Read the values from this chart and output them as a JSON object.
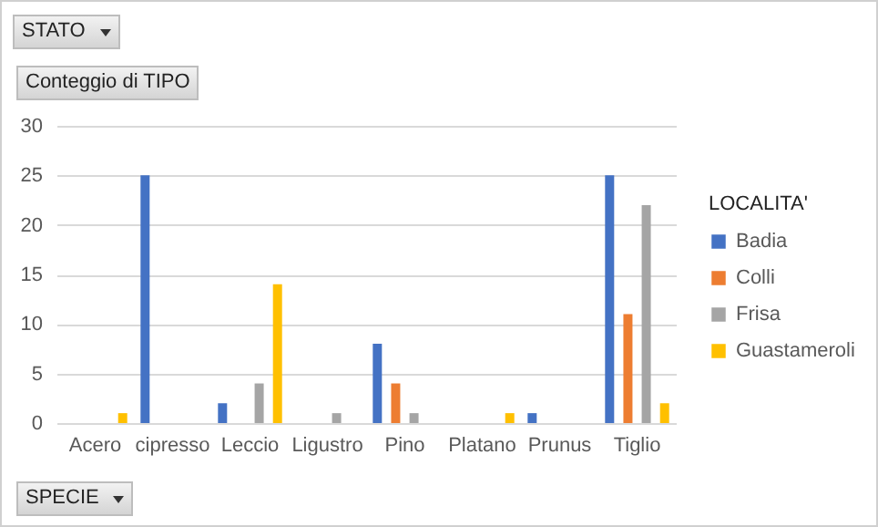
{
  "chart_data": {
    "type": "bar",
    "title": "STATO",
    "ylabel": "Conteggio di TIPO",
    "xlabel": "SPECIE",
    "legend_title": "LOCALITA'",
    "categories": [
      "Acero",
      "cipresso",
      "Leccio",
      "Ligustro",
      "Pino",
      "Platano",
      "Prunus",
      "Tiglio"
    ],
    "series": [
      {
        "name": "Badia",
        "color": "#4472c4",
        "values": [
          null,
          25,
          2,
          null,
          8,
          null,
          1,
          25
        ]
      },
      {
        "name": "Colli",
        "color": "#ed7d31",
        "values": [
          null,
          null,
          null,
          null,
          4,
          null,
          null,
          11
        ]
      },
      {
        "name": "Frisa",
        "color": "#a5a5a5",
        "values": [
          null,
          null,
          4,
          1,
          1,
          null,
          null,
          22
        ]
      },
      {
        "name": "Guastameroli",
        "color": "#ffc000",
        "values": [
          1,
          null,
          14,
          null,
          null,
          1,
          null,
          2
        ]
      }
    ],
    "ylim": [
      0,
      30
    ],
    "yticks": [
      0,
      5,
      10,
      15,
      20,
      25,
      30
    ],
    "grid": "y",
    "legend": "right"
  }
}
